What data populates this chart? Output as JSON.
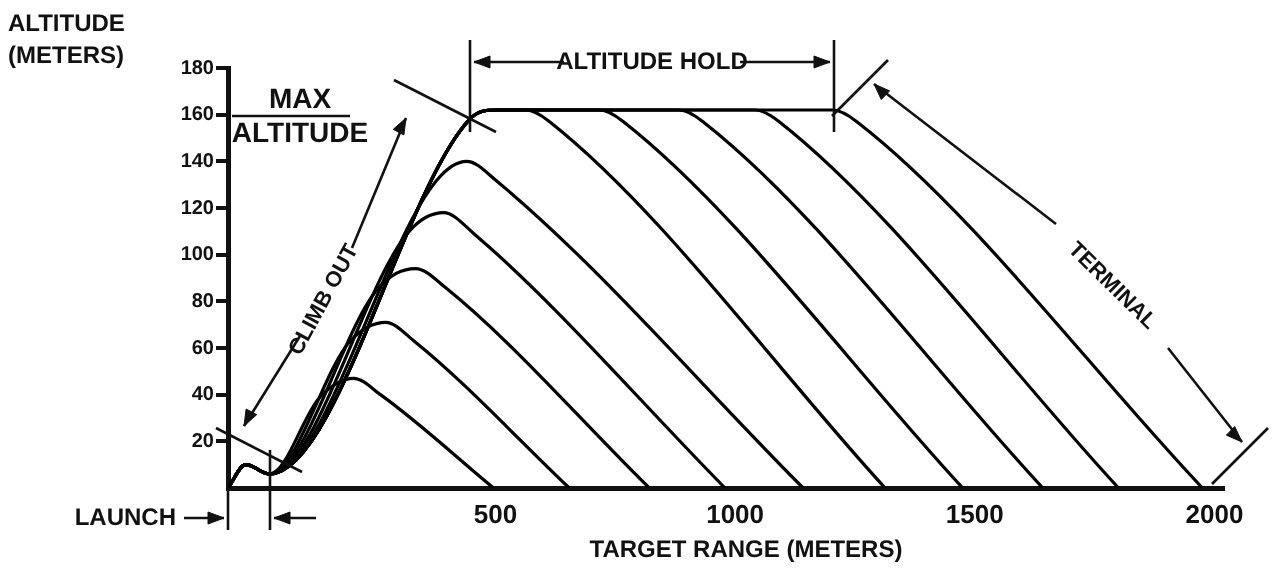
{
  "chart_data": {
    "type": "line",
    "xlabel": "TARGET RANGE (METERS)",
    "ylabel": "ALTITUDE (METERS)",
    "annotations": [
      "MAX ALTITUDE",
      "ALTITUDE HOLD",
      "CLIMB OUT",
      "TERMINAL",
      "LAUNCH"
    ],
    "xlim": [
      -58,
      2020
    ],
    "xticks": [
      500,
      1000,
      1500,
      2000
    ],
    "ylim": [
      0,
      180
    ],
    "yticks": [
      20,
      40,
      60,
      80,
      100,
      120,
      140,
      160,
      180
    ],
    "grid": false,
    "legend": false,
    "marker": "none",
    "line_style": "solid",
    "series": [
      {
        "color": "#000000",
        "x": [
          -58,
          -21,
          29,
          134,
          204,
          260,
          496
        ],
        "values": [
          0,
          10,
          6,
          39,
          47,
          40,
          0
        ]
      },
      {
        "color": "#000000",
        "x": [
          -58,
          -21,
          29,
          197,
          271,
          330,
          654
        ],
        "values": [
          0,
          10,
          6,
          63,
          71,
          63,
          0
        ]
      },
      {
        "color": "#000000",
        "x": [
          -58,
          -21,
          29,
          257,
          333,
          395,
          821
        ],
        "values": [
          0,
          10,
          6,
          86,
          94,
          86,
          0
        ]
      },
      {
        "color": "#000000",
        "x": [
          -58,
          -21,
          29,
          320,
          392,
          455,
          979
        ],
        "values": [
          0,
          10,
          6,
          110,
          118,
          109,
          0
        ]
      },
      {
        "color": "#000000",
        "x": [
          -58,
          -21,
          29,
          378,
          440,
          500,
          1142
        ],
        "values": [
          0,
          10,
          6,
          132,
          140,
          132,
          0
        ]
      },
      {
        "color": "#000000",
        "x": [
          -58,
          -21,
          29,
          446,
          500,
          563,
          613,
          1313
        ],
        "values": [
          0,
          10,
          6,
          158,
          162,
          162,
          157,
          0
        ]
      },
      {
        "color": "#000000",
        "x": [
          -58,
          -21,
          29,
          446,
          500,
          717,
          767,
          1475
        ],
        "values": [
          0,
          10,
          6,
          158,
          162,
          162,
          157,
          0
        ]
      },
      {
        "color": "#000000",
        "x": [
          -58,
          -21,
          29,
          446,
          500,
          883,
          933,
          1642
        ],
        "values": [
          0,
          10,
          6,
          158,
          162,
          162,
          157,
          0
        ]
      },
      {
        "color": "#000000",
        "x": [
          -58,
          -21,
          29,
          446,
          500,
          1042,
          1092,
          1800
        ],
        "values": [
          0,
          10,
          6,
          158,
          162,
          162,
          157,
          0
        ]
      },
      {
        "color": "#000000",
        "x": [
          -58,
          -21,
          29,
          446,
          500,
          1204,
          1254,
          1975
        ],
        "values": [
          0,
          10,
          6,
          158,
          162,
          162,
          157,
          0
        ]
      }
    ]
  }
}
